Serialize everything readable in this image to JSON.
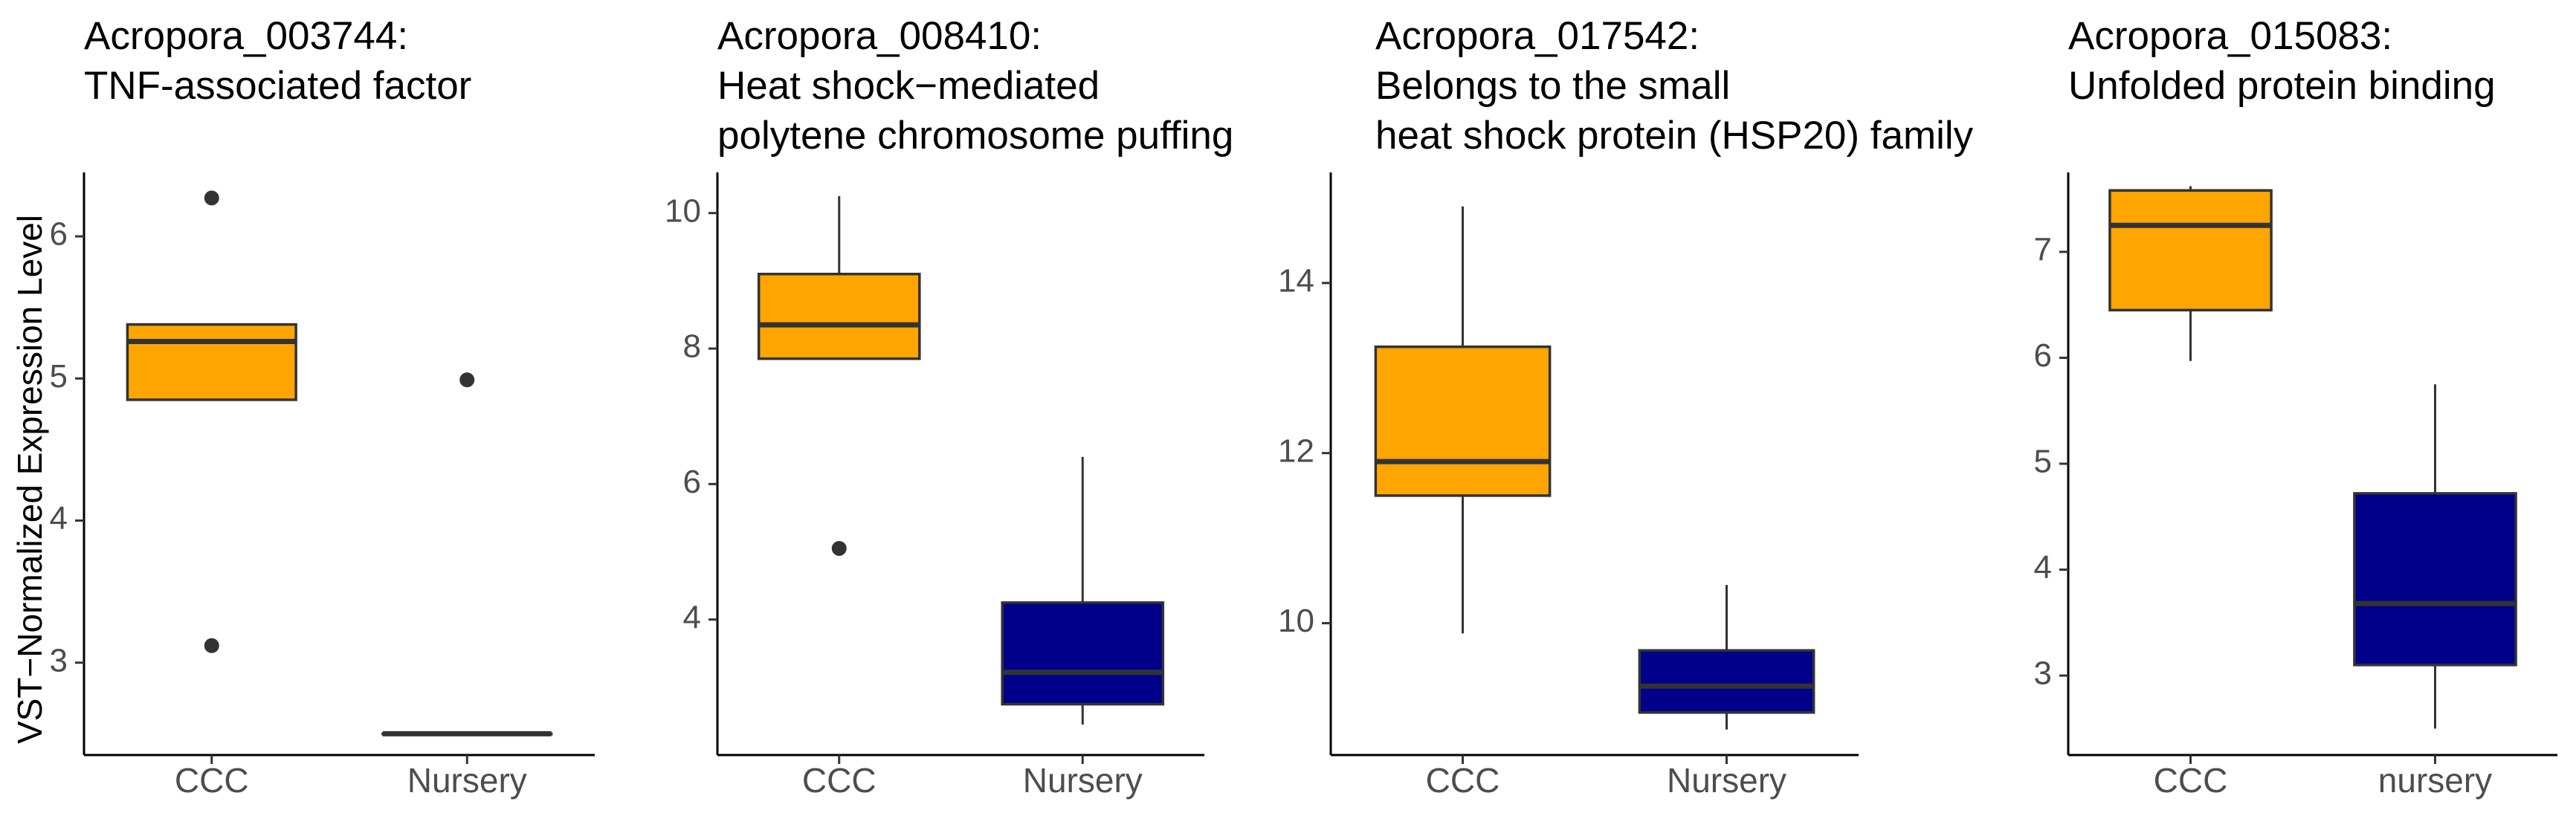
{
  "y_axis_label": "VST−Normalized Expression Level",
  "chart_data": [
    {
      "type": "boxplot",
      "title_lines": [
        "Acropora_003744:",
        "TNF-associated factor"
      ],
      "ylabel": "VST−Normalized Expression Level",
      "ylim": [
        2.35,
        6.45
      ],
      "yticks": [
        3,
        4,
        5,
        6
      ],
      "categories": [
        "CCC",
        "Nursery"
      ],
      "boxes": [
        {
          "category": "CCC",
          "color": "#FFA500",
          "whisker_low": 4.85,
          "q1": 4.85,
          "median": 5.26,
          "q3": 5.38,
          "whisker_high": 5.38,
          "outliers": [
            6.27,
            3.12
          ]
        },
        {
          "category": "Nursery",
          "color": "#00008B",
          "whisker_low": 2.5,
          "q1": 2.5,
          "median": 2.5,
          "q3": 2.5,
          "whisker_high": 2.5,
          "outliers": [
            4.99
          ]
        }
      ]
    },
    {
      "type": "boxplot",
      "title_lines": [
        "Acropora_008410:",
        "Heat shock−mediated",
        "polytene chromosome puffing"
      ],
      "ylim": [
        2.0,
        10.6
      ],
      "yticks": [
        4,
        6,
        8,
        10
      ],
      "categories": [
        "CCC",
        "Nursery"
      ],
      "boxes": [
        {
          "category": "CCC",
          "color": "#FFA500",
          "whisker_low": 7.85,
          "q1": 7.85,
          "median": 8.35,
          "q3": 9.1,
          "whisker_high": 10.25,
          "outliers": [
            5.05
          ]
        },
        {
          "category": "Nursery",
          "color": "#00008B",
          "whisker_low": 2.45,
          "q1": 2.75,
          "median": 3.22,
          "q3": 4.25,
          "whisker_high": 6.4,
          "outliers": []
        }
      ]
    },
    {
      "type": "boxplot",
      "title_lines": [
        "Acropora_017542:",
        "Belongs to the small",
        "heat shock protein (HSP20) family"
      ],
      "ylim": [
        8.45,
        15.3
      ],
      "yticks": [
        10,
        12,
        14
      ],
      "categories": [
        "CCC",
        "Nursery"
      ],
      "boxes": [
        {
          "category": "CCC",
          "color": "#FFA500",
          "whisker_low": 9.88,
          "q1": 11.5,
          "median": 11.9,
          "q3": 13.25,
          "whisker_high": 14.9,
          "outliers": []
        },
        {
          "category": "Nursery",
          "color": "#00008B",
          "whisker_low": 8.75,
          "q1": 8.95,
          "median": 9.26,
          "q3": 9.68,
          "whisker_high": 10.45,
          "outliers": []
        }
      ]
    },
    {
      "type": "boxplot",
      "title_lines": [
        "Acropora_015083:",
        "Unfolded protein binding"
      ],
      "ylim": [
        2.25,
        7.75
      ],
      "yticks": [
        3,
        4,
        5,
        6,
        7
      ],
      "categories": [
        "CCC",
        "nursery"
      ],
      "boxes": [
        {
          "category": "CCC",
          "color": "#FFA500",
          "whisker_low": 5.97,
          "q1": 6.45,
          "median": 7.25,
          "q3": 7.58,
          "whisker_high": 7.62,
          "outliers": []
        },
        {
          "category": "nursery",
          "color": "#00008B",
          "whisker_low": 2.5,
          "q1": 3.1,
          "median": 3.68,
          "q3": 4.72,
          "whisker_high": 5.75,
          "outliers": []
        }
      ]
    }
  ]
}
